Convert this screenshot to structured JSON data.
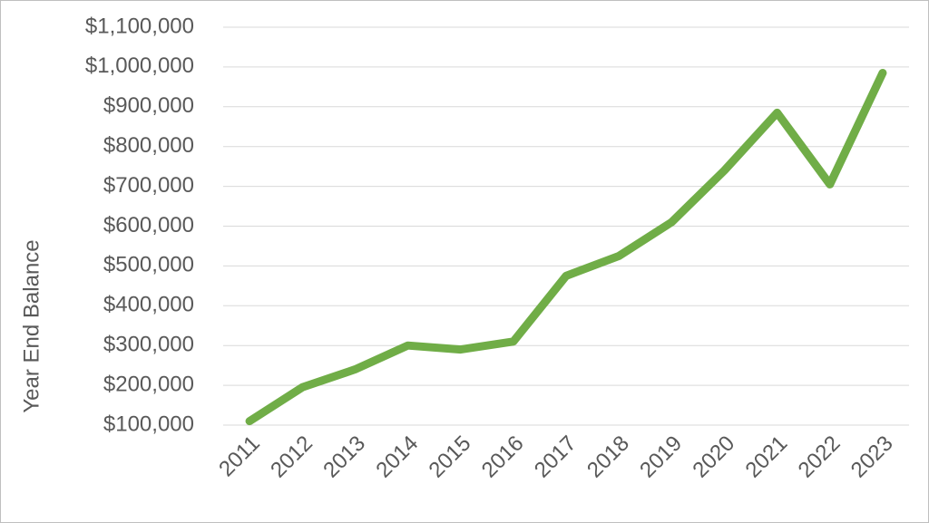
{
  "chart_data": {
    "type": "line",
    "y_label": "Year End Balance",
    "categories": [
      "2011",
      "2012",
      "2013",
      "2014",
      "2015",
      "2016",
      "2017",
      "2018",
      "2019",
      "2020",
      "2021",
      "2022",
      "2023"
    ],
    "series": [
      {
        "name": "Year End Balance",
        "color": "#70ad47",
        "values": [
          110000,
          195000,
          240000,
          300000,
          290000,
          310000,
          475000,
          525000,
          610000,
          740000,
          885000,
          705000,
          985000
        ]
      }
    ],
    "ylim": [
      100000,
      1100000
    ],
    "yticks": [
      {
        "value": 100000,
        "label": "$100,000"
      },
      {
        "value": 200000,
        "label": "$200,000"
      },
      {
        "value": 300000,
        "label": "$300,000"
      },
      {
        "value": 400000,
        "label": "$400,000"
      },
      {
        "value": 500000,
        "label": "$500,000"
      },
      {
        "value": 600000,
        "label": "$600,000"
      },
      {
        "value": 700000,
        "label": "$700,000"
      },
      {
        "value": 800000,
        "label": "$800,000"
      },
      {
        "value": 900000,
        "label": "$900,000"
      },
      {
        "value": 1000000,
        "label": "$1,000,000"
      },
      {
        "value": 1100000,
        "label": "$1,100,000"
      }
    ],
    "grid": true
  }
}
